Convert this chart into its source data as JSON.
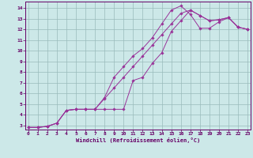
{
  "xlabel": "Windchill (Refroidissement éolien,°C)",
  "bg_color": "#cce8e8",
  "line_color": "#993399",
  "grid_color": "#99bbbb",
  "axes_color": "#660066",
  "xlim": [
    -0.3,
    23.3
  ],
  "ylim": [
    2.6,
    14.6
  ],
  "xticks": [
    0,
    1,
    2,
    3,
    4,
    5,
    6,
    7,
    8,
    9,
    10,
    11,
    12,
    13,
    14,
    15,
    16,
    17,
    18,
    19,
    20,
    21,
    22,
    23
  ],
  "yticks": [
    3,
    4,
    5,
    6,
    7,
    8,
    9,
    10,
    11,
    12,
    13,
    14
  ],
  "curve1_x": [
    0,
    1,
    2,
    3,
    4,
    5,
    6,
    7,
    8,
    9,
    10,
    11,
    12,
    13,
    14,
    15,
    16,
    17,
    18,
    19,
    20,
    21,
    22,
    23
  ],
  "curve1_y": [
    2.8,
    2.8,
    2.9,
    3.2,
    4.4,
    4.5,
    4.5,
    4.5,
    5.6,
    7.5,
    8.5,
    9.5,
    10.2,
    11.2,
    12.5,
    13.8,
    14.2,
    13.4,
    12.1,
    12.1,
    12.7,
    13.1,
    12.2,
    12.0
  ],
  "curve2_x": [
    0,
    1,
    2,
    3,
    4,
    5,
    6,
    7,
    8,
    9,
    10,
    11,
    12,
    13,
    14,
    15,
    16,
    17,
    18,
    19,
    20,
    21,
    22,
    23
  ],
  "curve2_y": [
    2.8,
    2.8,
    2.9,
    3.2,
    4.4,
    4.5,
    4.5,
    4.5,
    4.5,
    4.5,
    4.5,
    7.2,
    7.5,
    8.8,
    9.8,
    11.8,
    12.8,
    13.8,
    13.3,
    12.8,
    12.9,
    13.1,
    12.2,
    12.0
  ],
  "curve3_x": [
    0,
    1,
    2,
    3,
    4,
    5,
    6,
    7,
    8,
    9,
    10,
    11,
    12,
    13,
    14,
    15,
    16,
    17,
    18,
    19,
    20,
    21,
    22,
    23
  ],
  "curve3_y": [
    2.8,
    2.8,
    2.9,
    3.2,
    4.4,
    4.5,
    4.5,
    4.5,
    5.5,
    6.5,
    7.5,
    8.5,
    9.5,
    10.5,
    11.5,
    12.5,
    13.5,
    13.8,
    13.3,
    12.8,
    12.9,
    13.1,
    12.2,
    12.0
  ]
}
